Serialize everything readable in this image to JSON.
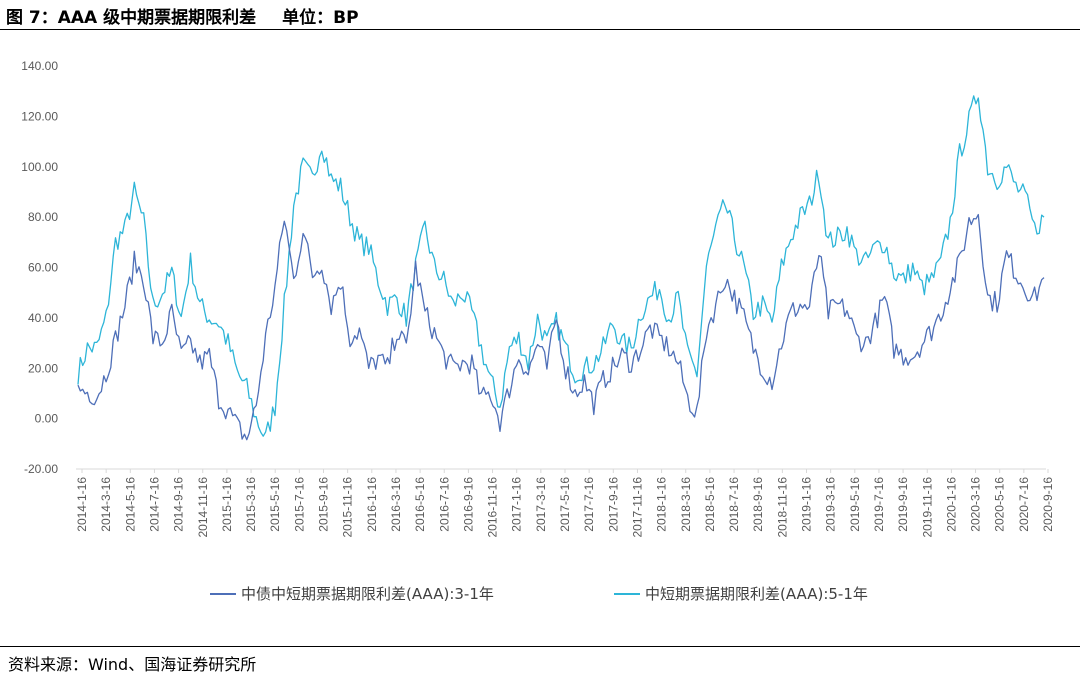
{
  "header": {
    "title": "图 7：AAA 级中期票据期限利差",
    "unit": "单位：BP"
  },
  "footer": {
    "source": "资料来源：Wind、国海证券研究所"
  },
  "colors": {
    "series_dark": "#4E6FB8",
    "series_light": "#2DB5D8",
    "axis": "#D9D9D9",
    "text": "#595959"
  },
  "chart_data": {
    "type": "line",
    "title": "AAA 级中期票据期限利差",
    "ylabel": "BP",
    "ylim": [
      -20,
      140
    ],
    "yticks": [
      "140.00",
      "120.00",
      "100.00",
      "80.00",
      "60.00",
      "40.00",
      "20.00",
      "0.00",
      "-20.00"
    ],
    "xticks": [
      "2014-1-16",
      "2014-3-16",
      "2014-5-16",
      "2014-7-16",
      "2014-9-16",
      "2014-11-16",
      "2015-1-16",
      "2015-3-16",
      "2015-5-16",
      "2015-7-16",
      "2015-9-16",
      "2015-11-16",
      "2016-1-16",
      "2016-3-16",
      "2016-5-16",
      "2016-7-16",
      "2016-9-16",
      "2016-11-16",
      "2017-1-16",
      "2017-3-16",
      "2017-5-16",
      "2017-7-16",
      "2017-9-16",
      "2017-11-16",
      "2018-1-16",
      "2018-3-16",
      "2018-5-16",
      "2018-7-16",
      "2018-9-16",
      "2018-11-16",
      "2019-1-16",
      "2019-3-16",
      "2019-5-16",
      "2019-7-16",
      "2019-9-16",
      "2019-11-16",
      "2020-1-16",
      "2020-3-16",
      "2020-5-16",
      "2020-7-16",
      "2020-9-16"
    ],
    "legend_position": "bottom",
    "series": [
      {
        "name": "中债中短期票据期限利差(AAA):3-1年",
        "color": "#4E6FB8",
        "anchors": [
          [
            0,
            12
          ],
          [
            2,
            9
          ],
          [
            3,
            18
          ],
          [
            5,
            45
          ],
          [
            6,
            62
          ],
          [
            7,
            56
          ],
          [
            8,
            32
          ],
          [
            9,
            30
          ],
          [
            10,
            42
          ],
          [
            11,
            25
          ],
          [
            12,
            30
          ],
          [
            13,
            22
          ],
          [
            14,
            25
          ],
          [
            15,
            8
          ],
          [
            16,
            3
          ],
          [
            17,
            -3
          ],
          [
            18,
            -8
          ],
          [
            19,
            5
          ],
          [
            20,
            32
          ],
          [
            21,
            52
          ],
          [
            22,
            80
          ],
          [
            23,
            55
          ],
          [
            24,
            75
          ],
          [
            25,
            57
          ],
          [
            26,
            62
          ],
          [
            27,
            45
          ],
          [
            28,
            55
          ],
          [
            29,
            32
          ],
          [
            30,
            35
          ],
          [
            31,
            20
          ],
          [
            32,
            24
          ],
          [
            33,
            20
          ],
          [
            34,
            35
          ],
          [
            35,
            28
          ],
          [
            36,
            60
          ],
          [
            37,
            42
          ],
          [
            38,
            34
          ],
          [
            39,
            25
          ],
          [
            40,
            20
          ],
          [
            41,
            22
          ],
          [
            42,
            22
          ],
          [
            43,
            8
          ],
          [
            44,
            10
          ],
          [
            45,
            -1
          ],
          [
            46,
            12
          ],
          [
            47,
            25
          ],
          [
            48,
            18
          ],
          [
            49,
            30
          ],
          [
            50,
            20
          ],
          [
            51,
            40
          ],
          [
            52,
            20
          ],
          [
            53,
            10
          ],
          [
            54,
            15
          ],
          [
            55,
            6
          ],
          [
            56,
            15
          ],
          [
            57,
            20
          ],
          [
            58,
            25
          ],
          [
            59,
            22
          ],
          [
            60,
            28
          ],
          [
            61,
            36
          ],
          [
            62,
            32
          ],
          [
            63,
            28
          ],
          [
            64,
            22
          ],
          [
            65,
            8
          ],
          [
            66,
            2
          ],
          [
            67,
            35
          ],
          [
            68,
            45
          ],
          [
            69,
            56
          ],
          [
            70,
            48
          ],
          [
            71,
            40
          ],
          [
            72,
            28
          ],
          [
            73,
            20
          ],
          [
            74,
            15
          ],
          [
            75,
            30
          ],
          [
            76,
            42
          ],
          [
            77,
            45
          ],
          [
            78,
            44
          ],
          [
            79,
            66
          ],
          [
            80,
            42
          ],
          [
            81,
            45
          ],
          [
            82,
            43
          ],
          [
            83,
            32
          ],
          [
            84,
            30
          ],
          [
            85,
            38
          ],
          [
            86,
            48
          ],
          [
            87,
            28
          ],
          [
            88,
            25
          ],
          [
            89,
            25
          ],
          [
            90,
            30
          ],
          [
            91,
            35
          ],
          [
            92,
            42
          ],
          [
            93,
            52
          ],
          [
            94,
            62
          ],
          [
            95,
            78
          ],
          [
            96,
            82
          ],
          [
            97,
            48
          ],
          [
            98,
            46
          ],
          [
            99,
            65
          ],
          [
            100,
            58
          ],
          [
            101,
            52
          ],
          [
            102,
            48
          ],
          [
            103,
            56
          ]
        ]
      },
      {
        "name": "中短期票据期限利差(AAA):5-1年",
        "color": "#2DB5D8",
        "anchors": [
          [
            0,
            18
          ],
          [
            1,
            28
          ],
          [
            2,
            28
          ],
          [
            3,
            40
          ],
          [
            4,
            70
          ],
          [
            5,
            75
          ],
          [
            6,
            90
          ],
          [
            7,
            78
          ],
          [
            8,
            45
          ],
          [
            9,
            50
          ],
          [
            10,
            58
          ],
          [
            11,
            40
          ],
          [
            12,
            62
          ],
          [
            13,
            45
          ],
          [
            14,
            40
          ],
          [
            15,
            38
          ],
          [
            16,
            30
          ],
          [
            17,
            18
          ],
          [
            18,
            12
          ],
          [
            19,
            0
          ],
          [
            20,
            -8
          ],
          [
            21,
            5
          ],
          [
            22,
            45
          ],
          [
            23,
            85
          ],
          [
            24,
            100
          ],
          [
            25,
            95
          ],
          [
            26,
            110
          ],
          [
            27,
            95
          ],
          [
            28,
            92
          ],
          [
            29,
            80
          ],
          [
            30,
            70
          ],
          [
            31,
            68
          ],
          [
            32,
            55
          ],
          [
            33,
            45
          ],
          [
            34,
            48
          ],
          [
            35,
            40
          ],
          [
            36,
            60
          ],
          [
            37,
            76
          ],
          [
            38,
            60
          ],
          [
            39,
            55
          ],
          [
            40,
            45
          ],
          [
            41,
            50
          ],
          [
            42,
            42
          ],
          [
            43,
            28
          ],
          [
            44,
            15
          ],
          [
            45,
            5
          ],
          [
            46,
            28
          ],
          [
            47,
            32
          ],
          [
            48,
            22
          ],
          [
            49,
            40
          ],
          [
            50,
            30
          ],
          [
            51,
            38
          ],
          [
            52,
            28
          ],
          [
            53,
            18
          ],
          [
            54,
            20
          ],
          [
            55,
            22
          ],
          [
            56,
            28
          ],
          [
            57,
            38
          ],
          [
            58,
            30
          ],
          [
            59,
            28
          ],
          [
            60,
            42
          ],
          [
            61,
            48
          ],
          [
            62,
            52
          ],
          [
            63,
            40
          ],
          [
            64,
            48
          ],
          [
            65,
            25
          ],
          [
            66,
            18
          ],
          [
            67,
            60
          ],
          [
            68,
            75
          ],
          [
            69,
            85
          ],
          [
            70,
            72
          ],
          [
            71,
            60
          ],
          [
            72,
            42
          ],
          [
            73,
            45
          ],
          [
            74,
            38
          ],
          [
            75,
            60
          ],
          [
            76,
            72
          ],
          [
            77,
            80
          ],
          [
            78,
            85
          ],
          [
            79,
            98
          ],
          [
            80,
            70
          ],
          [
            81,
            72
          ],
          [
            82,
            75
          ],
          [
            83,
            65
          ],
          [
            84,
            62
          ],
          [
            85,
            68
          ],
          [
            86,
            70
          ],
          [
            87,
            58
          ],
          [
            88,
            55
          ],
          [
            89,
            60
          ],
          [
            90,
            52
          ],
          [
            91,
            55
          ],
          [
            92,
            62
          ],
          [
            93,
            78
          ],
          [
            94,
            105
          ],
          [
            95,
            118
          ],
          [
            96,
            130
          ],
          [
            97,
            100
          ],
          [
            98,
            95
          ],
          [
            99,
            100
          ],
          [
            100,
            92
          ],
          [
            101,
            88
          ],
          [
            102,
            75
          ],
          [
            103,
            80
          ]
        ]
      }
    ]
  }
}
